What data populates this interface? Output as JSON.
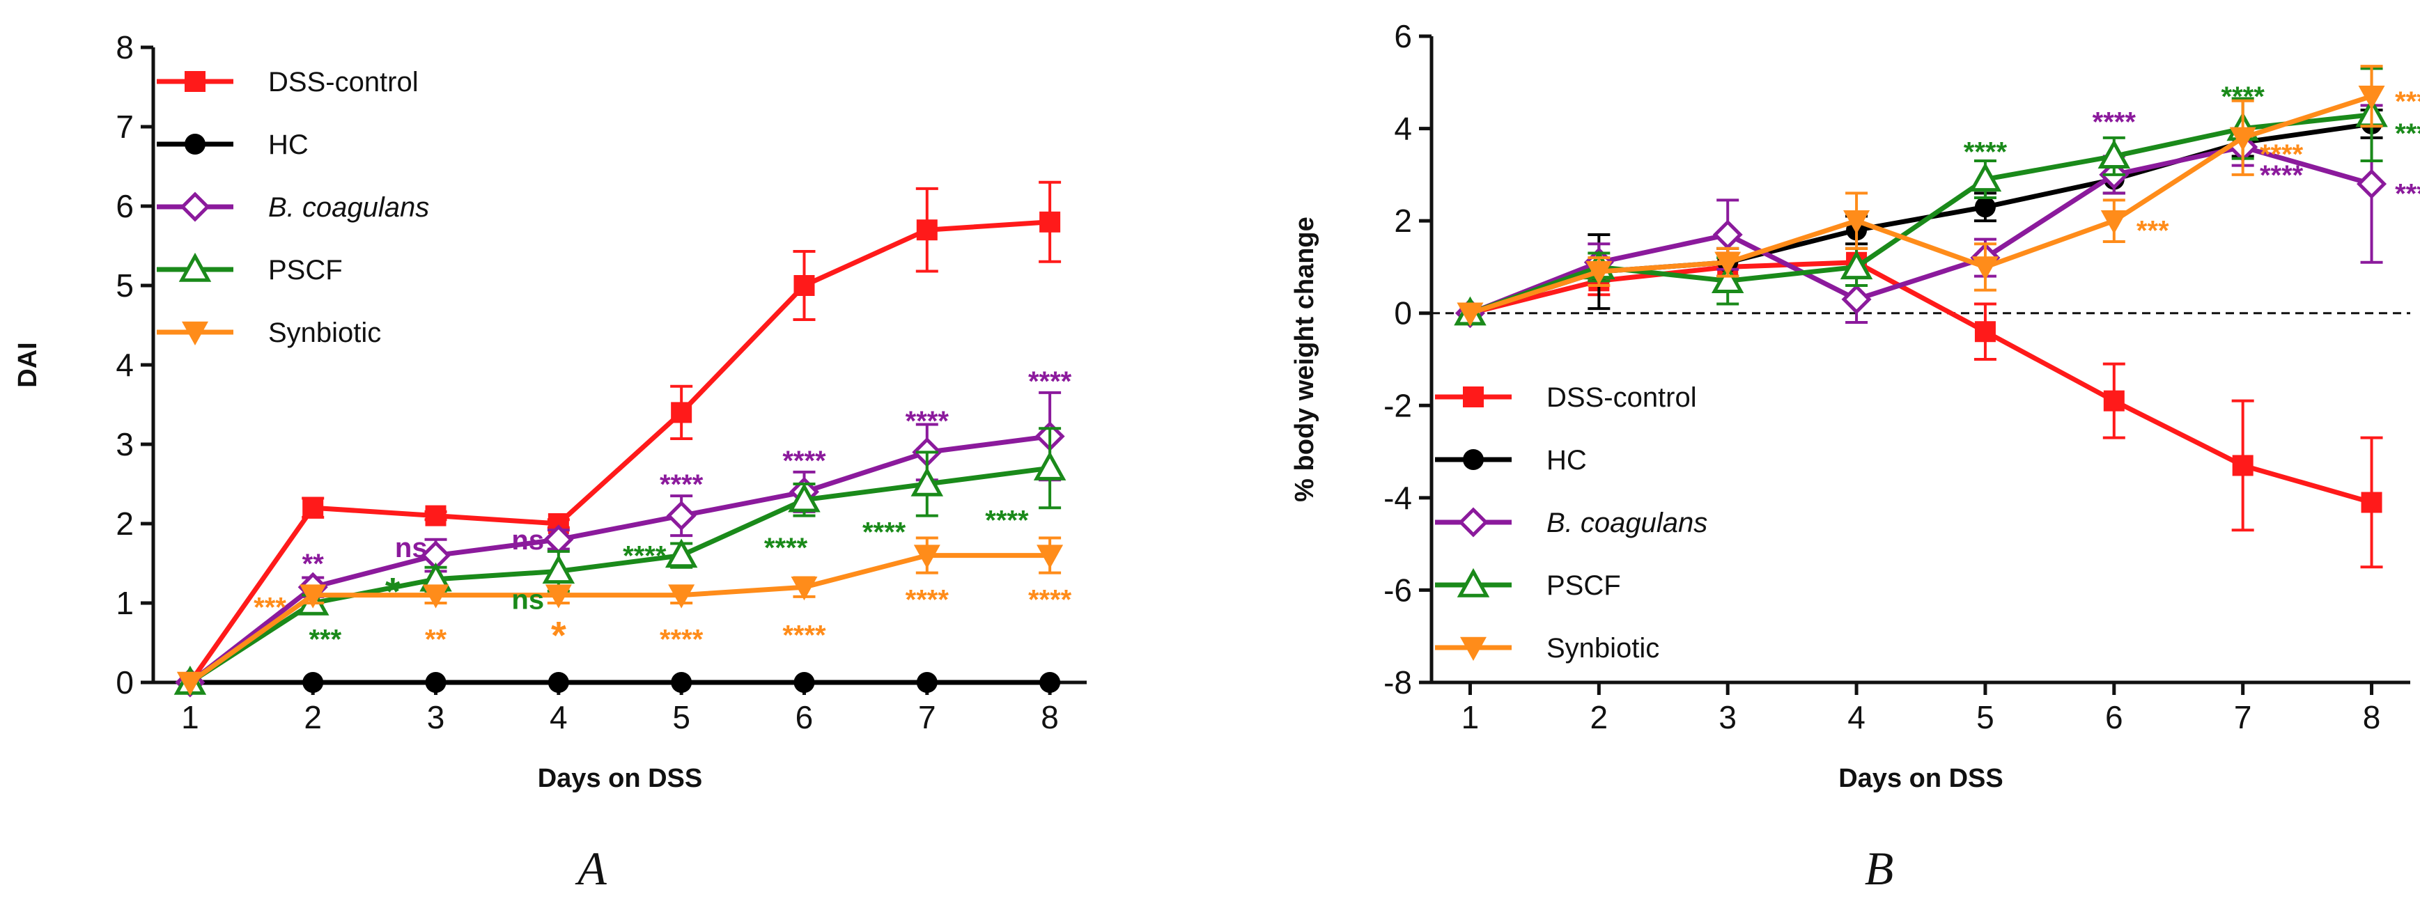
{
  "chart_data": [
    {
      "type": "line",
      "panel_label": "A",
      "xlabel": "Days on DSS",
      "ylabel": "DAI",
      "x": [
        1,
        2,
        3,
        4,
        5,
        6,
        7,
        8
      ],
      "xlim": [
        0.7,
        8.3
      ],
      "ylim": [
        0,
        8
      ],
      "yticks": [
        0,
        1,
        2,
        3,
        4,
        5,
        6,
        7,
        8
      ],
      "legend_position": "top-left",
      "series": [
        {
          "name": "DSS-control",
          "color": "#ff1a1a",
          "marker": "square-filled",
          "values": [
            0,
            2.2,
            2.1,
            2.0,
            3.4,
            5.0,
            5.7,
            5.8
          ],
          "errors": [
            0,
            0.12,
            0.05,
            0.05,
            0.33,
            0.43,
            0.52,
            0.5
          ]
        },
        {
          "name": "HC",
          "color": "#000000",
          "marker": "circle-filled",
          "values": [
            0,
            0,
            0,
            0,
            0,
            0,
            0,
            0
          ],
          "errors": [
            0,
            0,
            0,
            0,
            0,
            0,
            0,
            0
          ]
        },
        {
          "name": "B. coagulans",
          "italic": true,
          "color": "#8b1a9c",
          "marker": "diamond-open",
          "values": [
            0,
            1.2,
            1.6,
            1.8,
            2.1,
            2.4,
            2.9,
            3.1
          ],
          "errors": [
            0,
            0.12,
            0.2,
            0.12,
            0.25,
            0.25,
            0.35,
            0.55
          ]
        },
        {
          "name": "PSCF",
          "color": "#1a8a1a",
          "marker": "triangle-open",
          "values": [
            0,
            1.0,
            1.3,
            1.4,
            1.6,
            2.3,
            2.5,
            2.7
          ],
          "errors": [
            0,
            0.1,
            0.15,
            0.25,
            0.15,
            0.2,
            0.4,
            0.5
          ]
        },
        {
          "name": "Synbiotic",
          "color": "#ff8c1a",
          "marker": "triangle-down-filled",
          "values": [
            0,
            1.1,
            1.1,
            1.1,
            1.1,
            1.2,
            1.6,
            1.6
          ],
          "errors": [
            0,
            0.1,
            0.1,
            0.1,
            0.1,
            0.12,
            0.22,
            0.22
          ]
        }
      ],
      "annotations": [
        {
          "text": "**",
          "x": 2,
          "y": 1.5,
          "color": "#8b1a9c"
        },
        {
          "text": "ns",
          "x": 2.8,
          "y": 1.7,
          "color": "#8b1a9c"
        },
        {
          "text": "ns",
          "x": 3.75,
          "y": 1.8,
          "color": "#8b1a9c"
        },
        {
          "text": "****",
          "x": 5,
          "y": 2.5,
          "color": "#8b1a9c"
        },
        {
          "text": "****",
          "x": 6,
          "y": 2.8,
          "color": "#8b1a9c"
        },
        {
          "text": "****",
          "x": 7,
          "y": 3.3,
          "color": "#8b1a9c"
        },
        {
          "text": "****",
          "x": 8,
          "y": 3.8,
          "color": "#8b1a9c"
        },
        {
          "text": "***",
          "x": 2.1,
          "y": 0.55,
          "color": "#1a8a1a"
        },
        {
          "text": "*",
          "x": 2.65,
          "y": 1.1,
          "color": "#1a8a1a"
        },
        {
          "text": "ns",
          "x": 3.75,
          "y": 1.05,
          "color": "#1a8a1a"
        },
        {
          "text": "****",
          "x": 4.7,
          "y": 1.6,
          "color": "#1a8a1a"
        },
        {
          "text": "****",
          "x": 5.85,
          "y": 1.7,
          "color": "#1a8a1a"
        },
        {
          "text": "****",
          "x": 6.65,
          "y": 1.9,
          "color": "#1a8a1a"
        },
        {
          "text": "****",
          "x": 7.65,
          "y": 2.05,
          "color": "#1a8a1a"
        },
        {
          "text": "***",
          "x": 1.65,
          "y": 0.95,
          "color": "#ff8c1a"
        },
        {
          "text": "**",
          "x": 3,
          "y": 0.55,
          "color": "#ff8c1a"
        },
        {
          "text": "*",
          "x": 4,
          "y": 0.55,
          "color": "#ff8c1a"
        },
        {
          "text": "****",
          "x": 5,
          "y": 0.55,
          "color": "#ff8c1a"
        },
        {
          "text": "****",
          "x": 6,
          "y": 0.6,
          "color": "#ff8c1a"
        },
        {
          "text": "****",
          "x": 7,
          "y": 1.05,
          "color": "#ff8c1a"
        },
        {
          "text": "****",
          "x": 8,
          "y": 1.05,
          "color": "#ff8c1a"
        }
      ]
    },
    {
      "type": "line",
      "panel_label": "B",
      "xlabel": "Days on DSS",
      "ylabel": "% body weight change",
      "x": [
        1,
        2,
        3,
        4,
        5,
        6,
        7,
        8
      ],
      "xlim": [
        0.7,
        8.3
      ],
      "ylim": [
        -8,
        6
      ],
      "yticks": [
        -8,
        -6,
        -4,
        -2,
        0,
        2,
        4,
        6
      ],
      "zero_line": "dashed",
      "legend_position": "bottom-left",
      "series": [
        {
          "name": "DSS-control",
          "color": "#ff1a1a",
          "marker": "square-filled",
          "values": [
            0,
            0.7,
            1.0,
            1.1,
            -0.4,
            -1.9,
            -3.3,
            -4.1
          ],
          "errors": [
            0,
            0.3,
            0.3,
            0.3,
            0.6,
            0.8,
            1.4,
            1.4
          ]
        },
        {
          "name": "HC",
          "color": "#000000",
          "marker": "circle-filled",
          "values": [
            0,
            0.9,
            1.1,
            1.8,
            2.3,
            2.9,
            3.7,
            4.1
          ],
          "errors": [
            0,
            0.8,
            0.3,
            0.3,
            0.3,
            0.3,
            0.3,
            0.3
          ]
        },
        {
          "name": "B. coagulans",
          "italic": true,
          "color": "#8b1a9c",
          "marker": "diamond-open",
          "values": [
            0,
            1.1,
            1.7,
            0.3,
            1.2,
            3.0,
            3.6,
            2.8
          ],
          "errors": [
            0,
            0.4,
            0.75,
            0.5,
            0.4,
            0.4,
            0.4,
            1.7
          ]
        },
        {
          "name": "PSCF",
          "color": "#1a8a1a",
          "marker": "triangle-open",
          "values": [
            0,
            1.0,
            0.7,
            1.0,
            2.9,
            3.4,
            4.0,
            4.3
          ],
          "errors": [
            0,
            0.3,
            0.5,
            0.4,
            0.4,
            0.4,
            0.65,
            1.0
          ]
        },
        {
          "name": "Synbiotic",
          "color": "#ff8c1a",
          "marker": "triangle-down-filled",
          "values": [
            0,
            0.9,
            1.1,
            2.0,
            1.0,
            2.0,
            3.8,
            4.7
          ],
          "errors": [
            0,
            0.3,
            0.3,
            0.6,
            0.5,
            0.45,
            0.8,
            0.65
          ]
        }
      ],
      "annotations": [
        {
          "text": "****",
          "x": 6,
          "y": 4.15,
          "color": "#8b1a9c"
        },
        {
          "text": "****",
          "x": 7.3,
          "y": 3.0,
          "color": "#8b1a9c"
        },
        {
          "text": "****",
          "x": 8.35,
          "y": 2.6,
          "color": "#8b1a9c"
        },
        {
          "text": "****",
          "x": 5,
          "y": 3.5,
          "color": "#1a8a1a"
        },
        {
          "text": "****",
          "x": 7,
          "y": 4.7,
          "color": "#1a8a1a"
        },
        {
          "text": "****",
          "x": 8.35,
          "y": 3.9,
          "color": "#1a8a1a"
        },
        {
          "text": "****",
          "x": 7.3,
          "y": 3.45,
          "color": "#ff8c1a"
        },
        {
          "text": "***",
          "x": 6.3,
          "y": 1.8,
          "color": "#ff8c1a"
        },
        {
          "text": "****",
          "x": 8.35,
          "y": 4.6,
          "color": "#ff8c1a"
        }
      ]
    }
  ]
}
